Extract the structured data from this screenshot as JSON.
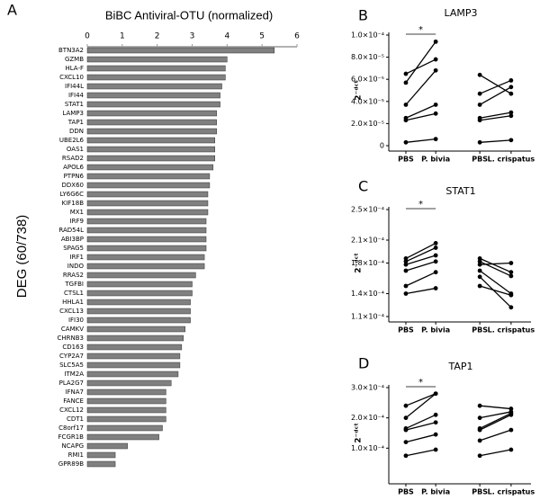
{
  "chart_data": [
    {
      "type": "bar",
      "label": "A",
      "title": "BiBC Antiviral-OTU (normalized)",
      "y_label": "DEG (60/738)",
      "horizontal": true,
      "color": "#808080",
      "categories": [
        "BTN3A2",
        "GZMB",
        "HLA-F",
        "CXCL10",
        "IFI44L",
        "IFI44",
        "STAT1",
        "LAMP3",
        "TAP1",
        "DDN",
        "UBE2L6",
        "OAS1",
        "RSAD2",
        "APOL6",
        "PTPN6",
        "DDX60",
        "LY6G6C",
        "KIF18B",
        "MX1",
        "IRF9",
        "RAD54L",
        "ABI3BP",
        "SPAG5",
        "IRF1",
        "INDO",
        "RRAS2",
        "TGFBI",
        "CTSL1",
        "HHLA1",
        "CXCL13",
        "IFI30",
        "CAMKV",
        "CHRNB3",
        "CD163",
        "CYP2A7",
        "SLC5A5",
        "ITM2A",
        "PLA2G7",
        "IFNA7",
        "FANCE",
        "CXCL12",
        "CDT1",
        "C8orf17",
        "FCGR1B",
        "NCAPG",
        "RMI1",
        "GPR89B"
      ],
      "values": [
        5.35,
        4.0,
        3.95,
        3.95,
        3.85,
        3.8,
        3.8,
        3.7,
        3.7,
        3.7,
        3.65,
        3.65,
        3.65,
        3.6,
        3.5,
        3.5,
        3.45,
        3.45,
        3.45,
        3.4,
        3.4,
        3.4,
        3.4,
        3.35,
        3.35,
        3.1,
        3.0,
        3.0,
        2.95,
        2.95,
        2.95,
        2.8,
        2.75,
        2.7,
        2.65,
        2.65,
        2.6,
        2.4,
        2.25,
        2.25,
        2.25,
        2.25,
        2.15,
        2.05,
        1.15,
        0.8,
        0.8
      ],
      "xlim": [
        0,
        6
      ],
      "xticks": [
        0,
        1,
        2,
        3,
        4,
        5,
        6
      ]
    },
    {
      "type": "paired",
      "label": "B",
      "title": "LAMP3",
      "y_label": "2⁻ᵈᶜᵗ",
      "annotation": "*",
      "categories": [
        "PBS",
        "P. bivia",
        "PBS",
        "L. crispatus"
      ],
      "columns": [
        [
          3e-06,
          2.3e-05,
          2.5e-05,
          3.7e-05,
          5.7e-05,
          6.5e-05
        ],
        [
          6e-06,
          2.9e-05,
          3.7e-05,
          6.8e-05,
          9.4e-05,
          7.8e-05
        ],
        [
          3e-06,
          2.3e-05,
          2.5e-05,
          3.7e-05,
          4.7e-05,
          6.4e-05
        ],
        [
          5e-06,
          2.7e-05,
          3e-05,
          5.3e-05,
          5.9e-05,
          4.7e-05
        ]
      ],
      "ylim": [
        0,
        0.0001
      ],
      "yticks": [
        0,
        {
          "value": 2e-05,
          "label": "2.0×10⁻⁵"
        },
        {
          "value": 4e-05,
          "label": "4.0×10⁻⁵"
        },
        {
          "value": 6e-05,
          "label": "6.0×10⁻⁵"
        },
        {
          "value": 8e-05,
          "label": "8.0×10⁻⁵"
        },
        {
          "value": 0.0001,
          "label": "1.0×10⁻⁴"
        }
      ]
    },
    {
      "type": "paired",
      "label": "C",
      "title": "STAT1",
      "y_label": "2⁻ᵈᶜᵗ",
      "annotation": "*",
      "categories": [
        "PBS",
        "P. bivia",
        "PBS",
        "L. crispatus"
      ],
      "columns": [
        [
          0.00014,
          0.00015,
          0.00017,
          0.000178,
          0.000182,
          0.000186
        ],
        [
          0.000147,
          0.000168,
          0.000182,
          0.00019,
          0.0002,
          0.000206
        ],
        [
          0.00015,
          0.000162,
          0.00017,
          0.000178,
          0.000182,
          0.000186
        ],
        [
          0.000138,
          0.000122,
          0.00014,
          0.00018,
          0.000163,
          0.000168
        ]
      ],
      "ylim": [
        0.00011,
        0.00025
      ],
      "yticks": [
        {
          "value": 0.00011,
          "label": "1.1×10⁻⁴"
        },
        {
          "value": 0.00014,
          "label": "1.4×10⁻⁴"
        },
        {
          "value": 0.00018,
          "label": "1.8×10⁻⁴"
        },
        {
          "value": 0.00021,
          "label": "2.1×10⁻⁴"
        },
        {
          "value": 0.00025,
          "label": "2.5×10⁻⁴"
        }
      ]
    },
    {
      "type": "paired",
      "label": "D",
      "title": "TAP1",
      "y_label": "2⁻ᵈᶜᵗ",
      "annotation": "*",
      "categories": [
        "PBS",
        "P. bivia",
        "PBS",
        "L. crispatus"
      ],
      "columns": [
        [
          7.5e-05,
          0.00012,
          0.00016,
          0.000165,
          0.0002,
          0.00024
        ],
        [
          9.5e-05,
          0.000145,
          0.000185,
          0.00021,
          0.00028,
          0.00028
        ],
        [
          7.5e-05,
          0.000125,
          0.00016,
          0.000165,
          0.0002,
          0.00024
        ],
        [
          9.5e-05,
          0.00016,
          0.00021,
          0.000215,
          0.00022,
          0.00023
        ]
      ],
      "ylim": [
        0,
        0.0003
      ],
      "yticks": [
        {
          "value": 0.0001,
          "label": "1.0×10⁻⁴"
        },
        {
          "value": 0.0002,
          "label": "2.0×10⁻⁴"
        },
        {
          "value": 0.0003,
          "label": "3.0×10⁻⁴"
        }
      ]
    }
  ]
}
